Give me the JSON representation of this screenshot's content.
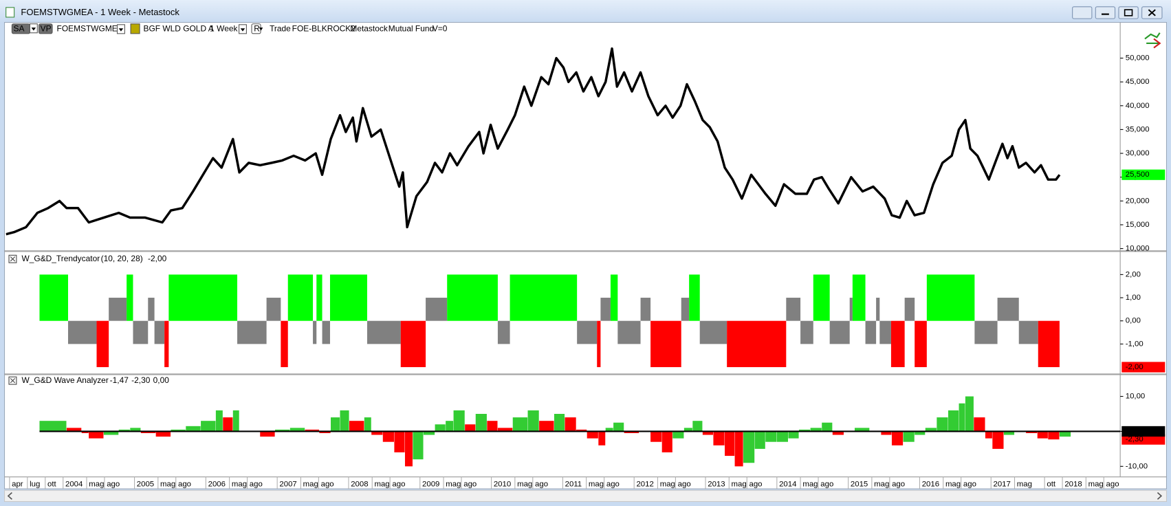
{
  "window": {
    "title": "FOEMSTWGMEA - 1 Week - Metastock"
  },
  "toolbar": {
    "items": [
      "SA",
      "VP",
      "FOEMSTWGMEA",
      "BGF WLD GOLD A",
      "1 Week",
      "R",
      "Trade",
      "FOE-BLKROCK2",
      "Metastock",
      "Mutual Fund",
      "V=0"
    ]
  },
  "x_axis": {
    "xlim": [
      2003.2,
      2018.81
    ],
    "xticks": [
      {
        "value": 2003.25,
        "label": "apr"
      },
      {
        "value": 2003.5,
        "label": "lug"
      },
      {
        "value": 2003.75,
        "label": "ott"
      },
      2004,
      {
        "value": 2004.33,
        "label": "mag"
      },
      {
        "value": 2004.58,
        "label": "ago"
      },
      2005,
      {
        "value": 2005.33,
        "label": "mag"
      },
      {
        "value": 2005.58,
        "label": "ago"
      },
      2006,
      {
        "value": 2006.33,
        "label": "mag"
      },
      {
        "value": 2006.58,
        "label": "ago"
      },
      2007,
      {
        "value": 2007.33,
        "label": "mag"
      },
      {
        "value": 2007.58,
        "label": "ago"
      },
      2008,
      {
        "value": 2008.33,
        "label": "mag"
      },
      {
        "value": 2008.58,
        "label": "ago"
      },
      2009,
      {
        "value": 2009.33,
        "label": "mag"
      },
      {
        "value": 2009.58,
        "label": "ago"
      },
      2010,
      {
        "value": 2010.33,
        "label": "mag"
      },
      {
        "value": 2010.58,
        "label": "ago"
      },
      2011,
      {
        "value": 2011.33,
        "label": "mag"
      },
      {
        "value": 2011.58,
        "label": "ago"
      },
      2012,
      {
        "value": 2012.33,
        "label": "mag"
      },
      {
        "value": 2012.58,
        "label": "ago"
      },
      2013,
      {
        "value": 2013.33,
        "label": "mag"
      },
      {
        "value": 2013.58,
        "label": "ago"
      },
      2014,
      {
        "value": 2014.33,
        "label": "mag"
      },
      {
        "value": 2014.58,
        "label": "ago"
      },
      2015,
      {
        "value": 2015.33,
        "label": "mag"
      },
      {
        "value": 2015.58,
        "label": "ago"
      },
      2016,
      {
        "value": 2016.33,
        "label": "mag"
      },
      {
        "value": 2016.58,
        "label": "ago"
      },
      2017,
      {
        "value": 2017.33,
        "label": "mag"
      },
      {
        "value": 2017.75,
        "label": "ott"
      },
      2018,
      {
        "value": 2018.33,
        "label": "mag"
      },
      {
        "value": 2018.58,
        "label": "ago"
      }
    ]
  },
  "chart_data": [
    {
      "type": "line",
      "color": "#000000",
      "x": [
        2003.2,
        2003.32,
        2003.48,
        2003.64,
        2003.79,
        2003.95,
        2004.05,
        2004.21,
        2004.36,
        2004.57,
        2004.78,
        2004.94,
        2005.15,
        2005.39,
        2005.51,
        2005.67,
        2005.82,
        2005.98,
        2006.1,
        2006.22,
        2006.38,
        2006.47,
        2006.6,
        2006.76,
        2006.92,
        2007.07,
        2007.23,
        2007.39,
        2007.54,
        2007.63,
        2007.75,
        2007.88,
        2007.96,
        2008.06,
        2008.11,
        2008.2,
        2008.32,
        2008.45,
        2008.58,
        2008.71,
        2008.76,
        2008.82,
        2008.95,
        2009.1,
        2009.21,
        2009.31,
        2009.42,
        2009.52,
        2009.68,
        2009.83,
        2009.89,
        2009.99,
        2010.09,
        2010.23,
        2010.33,
        2010.46,
        2010.56,
        2010.7,
        2010.8,
        2010.91,
        2011.01,
        2011.08,
        2011.19,
        2011.29,
        2011.4,
        2011.5,
        2011.6,
        2011.69,
        2011.76,
        2011.86,
        2011.97,
        2012.09,
        2012.2,
        2012.33,
        2012.44,
        2012.54,
        2012.65,
        2012.74,
        2012.85,
        2012.96,
        2013.06,
        2013.17,
        2013.27,
        2013.38,
        2013.51,
        2013.64,
        2013.74,
        2013.84,
        2013.98,
        2014.1,
        2014.26,
        2014.42,
        2014.52,
        2014.63,
        2014.73,
        2014.86,
        2015.04,
        2015.2,
        2015.35,
        2015.51,
        2015.61,
        2015.72,
        2015.82,
        2015.93,
        2016.06,
        2016.19,
        2016.32,
        2016.45,
        2016.55,
        2016.64,
        2016.71,
        2016.81,
        2016.89,
        2016.97,
        2017.07,
        2017.16,
        2017.23,
        2017.3,
        2017.39,
        2017.49,
        2017.61,
        2017.7,
        2017.8,
        2017.91,
        2017.96
      ],
      "values": [
        13000,
        13500,
        14500,
        17500,
        18500,
        20000,
        18500,
        18500,
        15500,
        16500,
        17500,
        16500,
        16500,
        15500,
        18000,
        18500,
        22000,
        26000,
        29000,
        27000,
        33000,
        26000,
        28000,
        27500,
        28000,
        28500,
        29500,
        28500,
        30000,
        25500,
        33000,
        38000,
        34500,
        37500,
        32500,
        39500,
        33500,
        35000,
        29000,
        23000,
        26000,
        14500,
        21000,
        24000,
        28000,
        26000,
        30000,
        27500,
        31500,
        34500,
        30000,
        36000,
        31000,
        35000,
        38000,
        44000,
        40000,
        46000,
        44500,
        50000,
        48000,
        45000,
        47000,
        43000,
        46000,
        42000,
        45000,
        52000,
        44000,
        47000,
        43000,
        47000,
        42000,
        38000,
        40000,
        37500,
        40000,
        44500,
        41000,
        37000,
        35500,
        32500,
        27000,
        24500,
        20500,
        25500,
        23500,
        21500,
        19000,
        23500,
        21500,
        21500,
        24500,
        25000,
        22500,
        19500,
        25000,
        22000,
        23000,
        20500,
        17000,
        16500,
        20000,
        17000,
        17500,
        23500,
        28000,
        29500,
        35000,
        37000,
        31000,
        29500,
        27000,
        24500,
        28500,
        32000,
        29000,
        31500,
        27000,
        28000,
        26000,
        27500,
        24500,
        24500,
        25500
      ],
      "ylim": [
        9700,
        57500
      ],
      "yticks": [
        {
          "value": 10000,
          "label": "10,000"
        },
        {
          "value": 15000,
          "label": "15,000"
        },
        {
          "value": 20000,
          "label": "20,000"
        },
        {
          "value": 25000,
          "label": "25,000"
        },
        {
          "value": 30000,
          "label": "30,000"
        },
        {
          "value": 35000,
          "label": "35,000"
        },
        {
          "value": 40000,
          "label": "40,000"
        },
        {
          "value": 45000,
          "label": "45,000"
        },
        {
          "value": 50000,
          "label": "50,000"
        }
      ],
      "last_value": {
        "value": 25500,
        "label": "25,500",
        "color": "#00ff00"
      }
    },
    {
      "type": "histogram",
      "title": "W_G&D_Trendycator",
      "params": "(10,  20,  28)",
      "readouts": [
        {
          "value": -2,
          "label": "-2,00",
          "color": "#ff0000",
          "boxed": true
        }
      ],
      "bins": [
        2003.67,
        2004.07,
        2004.47,
        2004.64,
        2004.89,
        2004.98,
        2005.19,
        2005.28,
        2005.42,
        2005.48,
        2006.44,
        2006.85,
        2007.05,
        2007.15,
        2007.5,
        2007.55,
        2007.63,
        2007.74,
        2008.26,
        2008.73,
        2009.08,
        2009.38,
        2010.09,
        2010.26,
        2011.2,
        2011.48,
        2011.53,
        2011.67,
        2011.77,
        2012.09,
        2012.23,
        2012.66,
        2012.77,
        2012.92,
        2013.3,
        2014.13,
        2014.33,
        2014.51,
        2014.74,
        2015.02,
        2015.06,
        2015.24,
        2015.39,
        2015.44,
        2015.6,
        2015.79,
        2015.93,
        2016.1,
        2016.77,
        2017.09,
        2017.39,
        2017.66,
        2017.96
      ],
      "values": [
        2,
        -1,
        -2,
        1,
        2,
        -1,
        1,
        -1,
        -2,
        2,
        -1,
        1,
        -2,
        2,
        -1,
        2,
        -1,
        2,
        -1,
        -2,
        1,
        2,
        -1,
        2,
        -1,
        -2,
        1,
        2,
        -1,
        1,
        -2,
        1,
        2,
        -1,
        -2,
        1,
        -1,
        2,
        -1,
        1,
        2,
        -1,
        1,
        -1,
        -2,
        1,
        -2,
        2,
        -1,
        1,
        -1,
        -2
      ],
      "up_color": "#00ff00",
      "neutral_color": "#808080",
      "down_color": "#ff0000",
      "ylim": [
        -2.26,
        2.9
      ],
      "yticks": [
        {
          "value": 2,
          "label": "2,00"
        },
        {
          "value": 1,
          "label": "1,00"
        },
        {
          "value": 0,
          "label": "0,00"
        },
        {
          "value": -1,
          "label": "-1,00"
        }
      ]
    },
    {
      "type": "bar",
      "title": "W_G&D Wave Analyzer",
      "readouts": [
        {
          "value": -1.47,
          "label": "-1,47",
          "color": "#22bb22",
          "boxed": false
        },
        {
          "value": -2.3,
          "label": "-2,30",
          "color": "#ff0000",
          "boxed": true
        },
        {
          "value": 0,
          "label": "0,00",
          "color": "#000000",
          "boxed": true
        }
      ],
      "x": [
        2003.67,
        2004.05,
        2004.26,
        2004.36,
        2004.57,
        2004.78,
        2004.94,
        2005.09,
        2005.3,
        2005.51,
        2005.72,
        2005.93,
        2006.14,
        2006.24,
        2006.38,
        2006.47,
        2006.76,
        2006.97,
        2007.18,
        2007.39,
        2007.59,
        2007.75,
        2007.88,
        2008.01,
        2008.22,
        2008.32,
        2008.48,
        2008.64,
        2008.79,
        2008.9,
        2009.05,
        2009.21,
        2009.36,
        2009.47,
        2009.63,
        2009.78,
        2009.94,
        2010.09,
        2010.3,
        2010.51,
        2010.67,
        2010.88,
        2011.03,
        2011.19,
        2011.34,
        2011.5,
        2011.6,
        2011.71,
        2011.86,
        2012.07,
        2012.23,
        2012.39,
        2012.54,
        2012.7,
        2012.82,
        2012.96,
        2013.11,
        2013.27,
        2013.41,
        2013.53,
        2013.69,
        2013.84,
        2014.0,
        2014.16,
        2014.31,
        2014.47,
        2014.63,
        2014.78,
        2014.94,
        2015.09,
        2015.3,
        2015.46,
        2015.61,
        2015.77,
        2015.93,
        2016.08,
        2016.24,
        2016.4,
        2016.55,
        2016.64,
        2016.76,
        2016.92,
        2017.02,
        2017.18,
        2017.33,
        2017.49,
        2017.65,
        2017.8,
        2017.96
      ],
      "values": [
        3,
        1,
        -0.5,
        -2,
        -1,
        0.5,
        1,
        -0.5,
        -1.5,
        0.5,
        1.5,
        3,
        6,
        4,
        6,
        0,
        -1.5,
        0.5,
        1,
        0.5,
        -0.5,
        4,
        6,
        3,
        4,
        -1,
        -3,
        -6,
        -10,
        -8,
        -1,
        2,
        3,
        6,
        2,
        5,
        3,
        1,
        4,
        6,
        3,
        5,
        4,
        0.5,
        -2,
        -4,
        1,
        2.5,
        -0.5,
        0,
        -3,
        -6,
        -2,
        1,
        3,
        -1,
        -4,
        -7,
        -10,
        -9,
        -5,
        -3,
        -3,
        -2,
        0.5,
        1,
        2.5,
        -1,
        0,
        1,
        0,
        -1,
        -4,
        -3,
        -1,
        1,
        4,
        6,
        8,
        10,
        4,
        -2,
        -5,
        -1,
        0,
        -0.5,
        -2,
        -2.3,
        -1.5
      ],
      "up_color": "#33cc33",
      "down_color": "#ff0000",
      "zero_line_color": "#000000",
      "ylim": [
        -12.8,
        16
      ],
      "yticks": [
        {
          "value": 10,
          "label": "10,00"
        },
        {
          "value": 0,
          "label": "0,00"
        },
        {
          "value": -10,
          "label": "-10,00"
        }
      ]
    }
  ]
}
